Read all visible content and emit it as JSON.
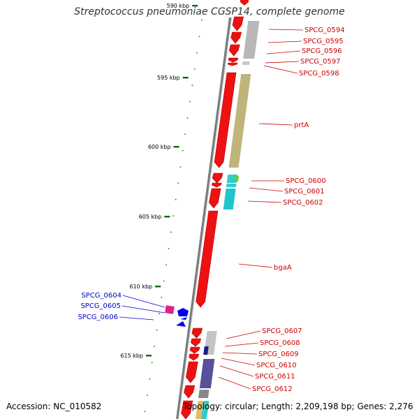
{
  "title": "Streptococcus pneumoniae CGSP14, complete genome",
  "footer": {
    "accession": "Accession: NC_010582",
    "summary": "Topology: circular; Length: 2,209,198 bp; Genes: 2,276"
  },
  "colors": {
    "forward_label": "#cc0000",
    "reverse_label": "#0000cc",
    "tick": "#006600",
    "backbone": "#808080"
  },
  "ticks": [
    {
      "label": "590 kbp"
    },
    {
      "label": "595 kbp"
    },
    {
      "label": "600 kbp"
    },
    {
      "label": "605 kbp"
    },
    {
      "label": "610 kbp"
    },
    {
      "label": "615 kbp"
    }
  ],
  "genes_forward": [
    {
      "label": "SPCG_0594"
    },
    {
      "label": "SPCG_0595"
    },
    {
      "label": "SPCG_0596"
    },
    {
      "label": "SPCG_0597"
    },
    {
      "label": "SPCG_0598"
    },
    {
      "label": "prtA"
    },
    {
      "label": "SPCG_0600"
    },
    {
      "label": "SPCG_0601"
    },
    {
      "label": "SPCG_0602"
    },
    {
      "label": "bgaA"
    },
    {
      "label": "SPCG_0607"
    },
    {
      "label": "SPCG_0608"
    },
    {
      "label": "SPCG_0609"
    },
    {
      "label": "SPCG_0610"
    },
    {
      "label": "SPCG_0611"
    },
    {
      "label": "SPCG_0612"
    }
  ],
  "genes_reverse": [
    {
      "label": "SPCG_0604"
    },
    {
      "label": "SPCG_0605"
    },
    {
      "label": "SPCG_0606"
    }
  ]
}
